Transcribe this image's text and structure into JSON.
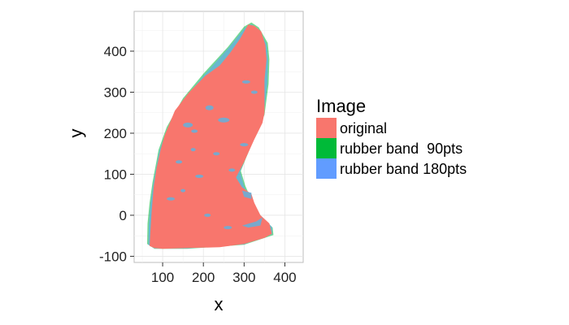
{
  "chart_data": {
    "type": "area",
    "title": "",
    "xlabel": "x",
    "ylabel": "y",
    "xlim": [
      30,
      445
    ],
    "ylim": [
      -115,
      497
    ],
    "x_ticks": [
      100,
      200,
      300,
      400
    ],
    "y_ticks": [
      -100,
      0,
      100,
      200,
      300,
      400
    ],
    "grid": true,
    "legend": {
      "title": "Image",
      "placement": "right"
    },
    "series": [
      {
        "name": "original",
        "color": "#F8766D",
        "points": [
          [
            68,
            -75
          ],
          [
            70,
            -40
          ],
          [
            73,
            10
          ],
          [
            78,
            70
          ],
          [
            85,
            115
          ],
          [
            95,
            160
          ],
          [
            105,
            195
          ],
          [
            130,
            255
          ],
          [
            165,
            300
          ],
          [
            205,
            340
          ],
          [
            240,
            365
          ],
          [
            265,
            395
          ],
          [
            290,
            430
          ],
          [
            310,
            465
          ],
          [
            325,
            462
          ],
          [
            342,
            448
          ],
          [
            352,
            415
          ],
          [
            355,
            380
          ],
          [
            350,
            330
          ],
          [
            350,
            250
          ],
          [
            345,
            225
          ],
          [
            325,
            185
          ],
          [
            300,
            130
          ],
          [
            280,
            92
          ],
          [
            295,
            68
          ],
          [
            318,
            52
          ],
          [
            325,
            30
          ],
          [
            340,
            0
          ],
          [
            362,
            -20
          ],
          [
            368,
            -45
          ],
          [
            350,
            -55
          ],
          [
            300,
            -70
          ],
          [
            240,
            -78
          ],
          [
            160,
            -80
          ],
          [
            100,
            -82
          ],
          [
            80,
            -80
          ]
        ]
      },
      {
        "name": "rubber band  90pts",
        "color": "#00BA38",
        "points": [
          [
            62,
            -70
          ],
          [
            63,
            -20
          ],
          [
            68,
            30
          ],
          [
            75,
            80
          ],
          [
            90,
            160
          ],
          [
            110,
            215
          ],
          [
            150,
            285
          ],
          [
            200,
            345
          ],
          [
            260,
            410
          ],
          [
            300,
            460
          ],
          [
            318,
            470
          ],
          [
            336,
            458
          ],
          [
            358,
            420
          ],
          [
            362,
            380
          ],
          [
            360,
            320
          ],
          [
            350,
            245
          ],
          [
            330,
            200
          ],
          [
            305,
            140
          ],
          [
            292,
            108
          ],
          [
            303,
            72
          ],
          [
            330,
            10
          ],
          [
            370,
            -30
          ],
          [
            372,
            -48
          ],
          [
            300,
            -72
          ],
          [
            160,
            -82
          ],
          [
            80,
            -82
          ]
        ]
      },
      {
        "name": "rubber band 180pts",
        "color": "#619CFF",
        "points": [
          [
            65,
            -72
          ],
          [
            66,
            -25
          ],
          [
            70,
            25
          ],
          [
            77,
            78
          ],
          [
            92,
            158
          ],
          [
            112,
            212
          ],
          [
            152,
            283
          ],
          [
            203,
            343
          ],
          [
            262,
            408
          ],
          [
            302,
            457
          ],
          [
            318,
            466
          ],
          [
            334,
            455
          ],
          [
            355,
            418
          ],
          [
            359,
            378
          ],
          [
            357,
            320
          ],
          [
            348,
            246
          ],
          [
            328,
            198
          ],
          [
            303,
            138
          ],
          [
            290,
            106
          ],
          [
            300,
            70
          ],
          [
            328,
            10
          ],
          [
            368,
            -28
          ],
          [
            369,
            -46
          ],
          [
            300,
            -71
          ],
          [
            160,
            -81
          ],
          [
            80,
            -81
          ]
        ]
      }
    ]
  }
}
